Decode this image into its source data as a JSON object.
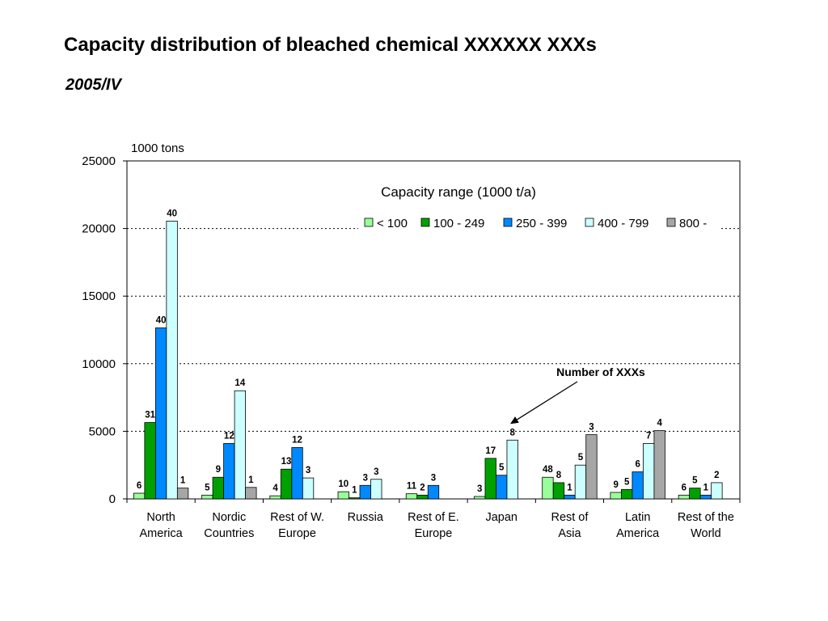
{
  "title": "Capacity distribution of bleached chemical XXXXXX XXXs",
  "subtitle": "2005/IV",
  "chart_data": {
    "type": "bar",
    "title": "Capacity distribution of bleached chemical XXXXXX XXXs",
    "subtitle": "2005/IV",
    "ylabel": "1000 tons",
    "xlabel": "",
    "ylim": [
      0,
      25000
    ],
    "yticks": [
      "0",
      "5000",
      "10000",
      "15000",
      "20000",
      "25000"
    ],
    "grid": true,
    "legend": {
      "title": "Capacity range (1000 t/a)",
      "placement": "top-right"
    },
    "categories": [
      [
        "North",
        "America"
      ],
      [
        "Nordic",
        "Countries"
      ],
      [
        "Rest of W.",
        "Europe"
      ],
      [
        "Russia"
      ],
      [
        "Rest of E.",
        "Europe"
      ],
      [
        "Japan"
      ],
      [
        "Rest of",
        "Asia"
      ],
      [
        "Latin",
        "America"
      ],
      [
        "Rest of the",
        "World"
      ]
    ],
    "series": [
      {
        "name": "< 100",
        "color": "#99ff99",
        "values": [
          420,
          280,
          230,
          530,
          380,
          180,
          1600,
          480,
          280
        ],
        "labels": [
          "6",
          "5",
          "4",
          "10",
          "11",
          "3",
          "48",
          "9",
          "6"
        ]
      },
      {
        "name": "100 - 249",
        "color": "#00a000",
        "values": [
          5650,
          1600,
          2200,
          80,
          280,
          3000,
          1200,
          700,
          800
        ],
        "labels": [
          "31",
          "9",
          "13",
          "1",
          "2",
          "17",
          "8",
          "5",
          "5"
        ]
      },
      {
        "name": "250 - 399",
        "color": "#0088ff",
        "values": [
          12650,
          4100,
          3800,
          1000,
          1000,
          1750,
          280,
          2000,
          280
        ],
        "labels": [
          "40",
          "12",
          "12",
          "3",
          "3",
          "5",
          "1",
          "6",
          "1"
        ]
      },
      {
        "name": "400 - 799",
        "color": "#ccffff",
        "values": [
          20550,
          8000,
          1550,
          1450,
          null,
          4350,
          2500,
          4100,
          1200
        ],
        "labels": [
          "40",
          "14",
          "3",
          "3",
          "",
          "8",
          "5",
          "7",
          "2"
        ]
      },
      {
        "name": "800 -",
        "color": "#a6a6a6",
        "values": [
          800,
          850,
          null,
          null,
          null,
          null,
          4750,
          5050,
          null
        ],
        "labels": [
          "1",
          "1",
          "",
          "",
          "",
          "",
          "3",
          "4",
          ""
        ]
      }
    ],
    "annotations": [
      {
        "text": "Number of XXXs",
        "points_to": {
          "category_index": 5,
          "series_index": 3
        }
      }
    ]
  }
}
